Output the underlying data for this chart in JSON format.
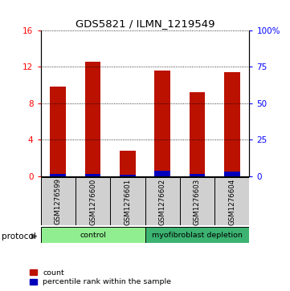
{
  "title": "GDS5821 / ILMN_1219549",
  "samples": [
    "GSM1276599",
    "GSM1276600",
    "GSM1276601",
    "GSM1276602",
    "GSM1276603",
    "GSM1276604"
  ],
  "count_values": [
    9.8,
    12.6,
    2.8,
    11.6,
    9.2,
    11.4
  ],
  "percentile_values": [
    1.5,
    1.7,
    0.9,
    3.5,
    1.5,
    3.2
  ],
  "groups": [
    {
      "label": "control",
      "start": 0,
      "end": 3,
      "color": "#90EE90"
    },
    {
      "label": "myofibroblast depletion",
      "start": 3,
      "end": 6,
      "color": "#3CB371"
    }
  ],
  "ylim_left": [
    0,
    16
  ],
  "ylim_right": [
    0,
    100
  ],
  "yticks_left": [
    0,
    4,
    8,
    12,
    16
  ],
  "yticks_right": [
    0,
    25,
    50,
    75,
    100
  ],
  "ytick_labels_right": [
    "0",
    "25",
    "50",
    "75",
    "100%"
  ],
  "bar_color": "#BB1100",
  "percentile_color": "#0000BB",
  "bar_width": 0.45,
  "legend_count_label": "count",
  "legend_percentile_label": "percentile rank within the sample",
  "protocol_label": "protocol"
}
